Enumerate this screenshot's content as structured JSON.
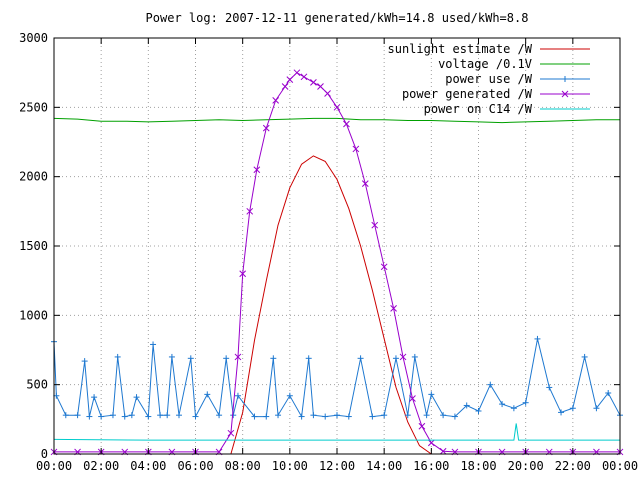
{
  "chart_data": {
    "type": "line",
    "title": "Power log: 2007-12-11 generated/kWh=14.8 used/kWh=8.8",
    "xlabel": "",
    "ylabel": "",
    "xlim": [
      0,
      24
    ],
    "ylim": [
      0,
      3000
    ],
    "grid": true,
    "legend_position": "top-right",
    "x_ticks": [
      {
        "value": 0,
        "label": "00:00"
      },
      {
        "value": 2,
        "label": "02:00"
      },
      {
        "value": 4,
        "label": "04:00"
      },
      {
        "value": 6,
        "label": "06:00"
      },
      {
        "value": 8,
        "label": "08:00"
      },
      {
        "value": 10,
        "label": "10:00"
      },
      {
        "value": 12,
        "label": "12:00"
      },
      {
        "value": 14,
        "label": "14:00"
      },
      {
        "value": 16,
        "label": "16:00"
      },
      {
        "value": 18,
        "label": "18:00"
      },
      {
        "value": 20,
        "label": "20:00"
      },
      {
        "value": 22,
        "label": "22:00"
      },
      {
        "value": 24,
        "label": "00:00"
      }
    ],
    "y_ticks": [
      {
        "value": 0,
        "label": "0"
      },
      {
        "value": 500,
        "label": "500"
      },
      {
        "value": 1000,
        "label": "1000"
      },
      {
        "value": 1500,
        "label": "1500"
      },
      {
        "value": 2000,
        "label": "2000"
      },
      {
        "value": 2500,
        "label": "2500"
      },
      {
        "value": 3000,
        "label": "3000"
      }
    ],
    "series": [
      {
        "name": "sunlight estimate /W",
        "color": "#cc0000",
        "style": "line",
        "x": [
          7.5,
          8.0,
          8.5,
          9.0,
          9.5,
          10.0,
          10.5,
          11.0,
          11.5,
          12.0,
          12.5,
          13.0,
          13.5,
          14.0,
          14.5,
          15.0,
          15.5,
          16.0
        ],
        "y": [
          0,
          300,
          820,
          1250,
          1650,
          1920,
          2090,
          2150,
          2110,
          1980,
          1770,
          1500,
          1180,
          830,
          480,
          230,
          60,
          0
        ]
      },
      {
        "name": "voltage /0.1V",
        "color": "#00a000",
        "style": "line",
        "x": [
          0,
          1,
          2,
          3,
          4,
          5,
          6,
          7,
          8,
          9,
          10,
          11,
          12,
          13,
          14,
          15,
          16,
          17,
          18,
          19,
          20,
          21,
          22,
          23,
          24
        ],
        "y": [
          2420,
          2415,
          2400,
          2400,
          2395,
          2400,
          2405,
          2410,
          2405,
          2410,
          2415,
          2420,
          2420,
          2410,
          2410,
          2405,
          2405,
          2400,
          2395,
          2390,
          2395,
          2400,
          2405,
          2410,
          2410
        ]
      },
      {
        "name": "power use /W",
        "color": "#1e78d0",
        "style": "linespoints",
        "marker": "plus",
        "x": [
          0,
          0.1,
          0.5,
          1.0,
          1.3,
          1.5,
          1.7,
          2.0,
          2.5,
          2.7,
          3.0,
          3.3,
          3.5,
          4.0,
          4.2,
          4.5,
          4.8,
          5.0,
          5.3,
          5.8,
          6.0,
          6.5,
          7.0,
          7.3,
          7.6,
          7.8,
          8.5,
          9.0,
          9.3,
          9.5,
          10.0,
          10.5,
          10.8,
          11.0,
          11.5,
          12.0,
          12.5,
          13.0,
          13.5,
          14.0,
          14.5,
          15.0,
          15.3,
          15.8,
          16.0,
          16.5,
          17.0,
          17.5,
          18.0,
          18.5,
          19.0,
          19.5,
          20.0,
          20.5,
          21.0,
          21.5,
          22.0,
          22.5,
          23.0,
          23.5,
          24.0
        ],
        "y": [
          810,
          420,
          280,
          280,
          670,
          270,
          410,
          270,
          280,
          700,
          270,
          280,
          410,
          270,
          790,
          280,
          280,
          700,
          280,
          690,
          270,
          430,
          280,
          690,
          280,
          420,
          270,
          270,
          690,
          280,
          420,
          270,
          690,
          280,
          270,
          280,
          270,
          690,
          270,
          280,
          690,
          280,
          700,
          280,
          430,
          280,
          270,
          350,
          310,
          500,
          360,
          330,
          370,
          830,
          480,
          300,
          330,
          700,
          330,
          440,
          280
        ]
      },
      {
        "name": "power generated /W",
        "color": "#9900cc",
        "style": "linespoints",
        "marker": "cross",
        "x": [
          0,
          1,
          2,
          3,
          4,
          5,
          6,
          7,
          7.5,
          7.8,
          8.0,
          8.3,
          8.6,
          9.0,
          9.4,
          9.8,
          10.0,
          10.3,
          10.6,
          11.0,
          11.3,
          11.6,
          12.0,
          12.4,
          12.8,
          13.2,
          13.6,
          14.0,
          14.4,
          14.8,
          15.2,
          15.6,
          16.0,
          16.5,
          17,
          18,
          19,
          20,
          21,
          22,
          23,
          24
        ],
        "y": [
          15,
          15,
          15,
          15,
          15,
          15,
          15,
          15,
          150,
          700,
          1300,
          1750,
          2050,
          2350,
          2550,
          2650,
          2700,
          2750,
          2720,
          2680,
          2650,
          2600,
          2500,
          2380,
          2200,
          1950,
          1650,
          1350,
          1050,
          700,
          400,
          200,
          80,
          20,
          15,
          15,
          15,
          15,
          15,
          15,
          15,
          15
        ]
      },
      {
        "name": "power on C14 /W",
        "color": "#00cccc",
        "style": "line",
        "x": [
          0,
          4,
          8,
          12,
          16,
          19.5,
          19.6,
          19.7,
          20,
          24
        ],
        "y": [
          105,
          100,
          100,
          100,
          100,
          100,
          220,
          100,
          100,
          100
        ]
      }
    ]
  }
}
